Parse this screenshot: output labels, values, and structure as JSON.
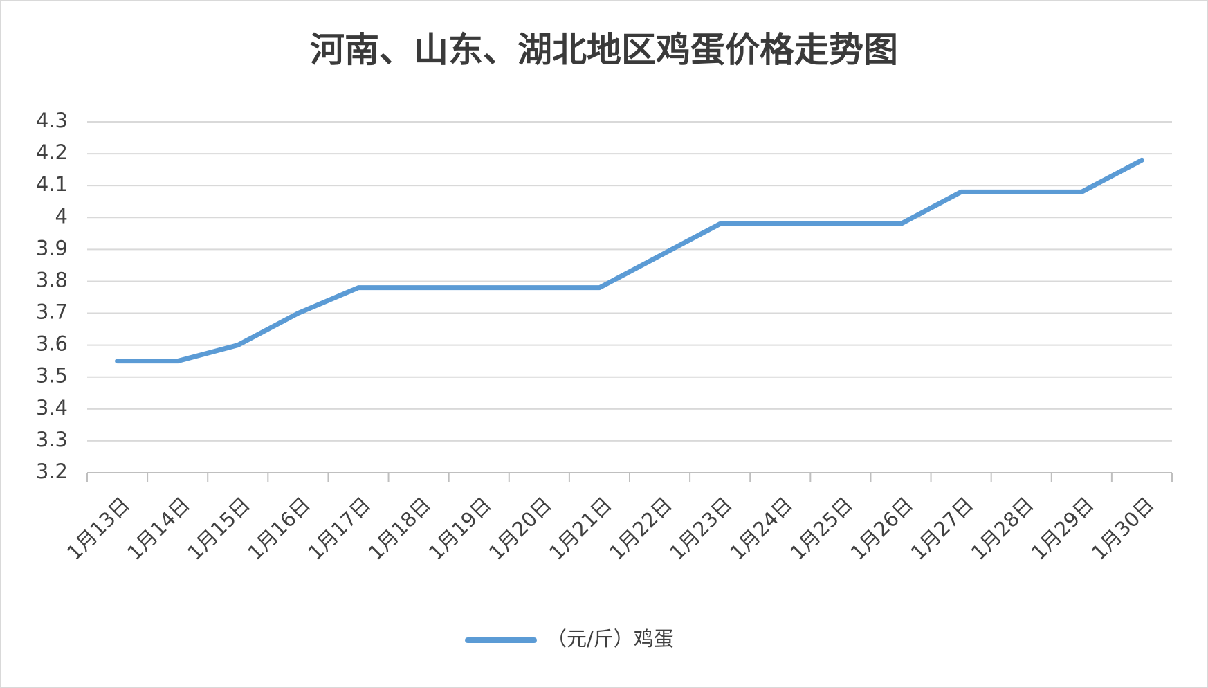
{
  "chart_data": {
    "type": "line",
    "title": "河南、山东、湖北地区鸡蛋价格走势图",
    "categories": [
      "1月13日",
      "1月14日",
      "1月15日",
      "1月16日",
      "1月17日",
      "1月18日",
      "1月19日",
      "1月20日",
      "1月21日",
      "1月22日",
      "1月23日",
      "1月24日",
      "1月25日",
      "1月26日",
      "1月27日",
      "1月28日",
      "1月29日",
      "1月30日"
    ],
    "series": [
      {
        "name": "（元/斤）鸡蛋",
        "color": "#5b9bd5",
        "values": [
          3.55,
          3.55,
          3.6,
          3.7,
          3.78,
          3.78,
          3.78,
          3.78,
          3.78,
          3.88,
          3.98,
          3.98,
          3.98,
          3.98,
          4.08,
          4.08,
          4.08,
          4.18
        ]
      }
    ],
    "ylim": [
      3.2,
      4.3
    ],
    "yticks": [
      3.2,
      3.3,
      3.4,
      3.5,
      3.6,
      3.7,
      3.8,
      3.9,
      4,
      4.1,
      4.2,
      4.3
    ],
    "grid": true,
    "legend": "bottom"
  }
}
